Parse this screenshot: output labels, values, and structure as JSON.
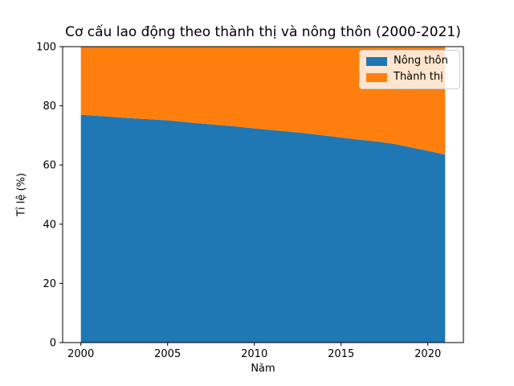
{
  "chart_data": {
    "type": "area",
    "stacked": true,
    "title": "Cơ cấu lao động theo thành thị và nông thôn (2000-2021)",
    "xlabel": "Năm",
    "ylabel": "Tỉ lệ (%)",
    "x": [
      2000,
      2001,
      2002,
      2003,
      2004,
      2005,
      2006,
      2007,
      2008,
      2009,
      2010,
      2011,
      2012,
      2013,
      2014,
      2015,
      2016,
      2017,
      2018,
      2019,
      2020,
      2021
    ],
    "series": [
      {
        "name": "Nông thôn",
        "color": "#1f77b4",
        "values": [
          77.0,
          76.6,
          76.2,
          75.8,
          75.5,
          75.1,
          74.5,
          74.0,
          73.5,
          73.0,
          72.4,
          71.8,
          71.3,
          70.7,
          70.0,
          69.3,
          68.6,
          68.0,
          67.2,
          66.0,
          64.8,
          63.5
        ]
      },
      {
        "name": "Thành thị",
        "color": "#ff7f0e",
        "values": [
          23.0,
          23.4,
          23.8,
          24.2,
          24.5,
          24.9,
          25.5,
          26.0,
          26.5,
          27.0,
          27.6,
          28.2,
          28.7,
          29.3,
          30.0,
          30.7,
          31.4,
          32.0,
          32.8,
          34.0,
          35.2,
          36.5
        ]
      }
    ],
    "xlim": [
      1998.95,
      2022.05
    ],
    "ylim": [
      0,
      100
    ],
    "x_ticks": [
      2000,
      2005,
      2010,
      2015,
      2020
    ],
    "y_ticks": [
      0,
      20,
      40,
      60,
      80,
      100
    ],
    "grid": false,
    "legend": {
      "position": "upper right",
      "labels": [
        "Nông thôn",
        "Thành thị"
      ]
    },
    "axis_color": "#000000",
    "legend_border_color": "#cccccc"
  }
}
